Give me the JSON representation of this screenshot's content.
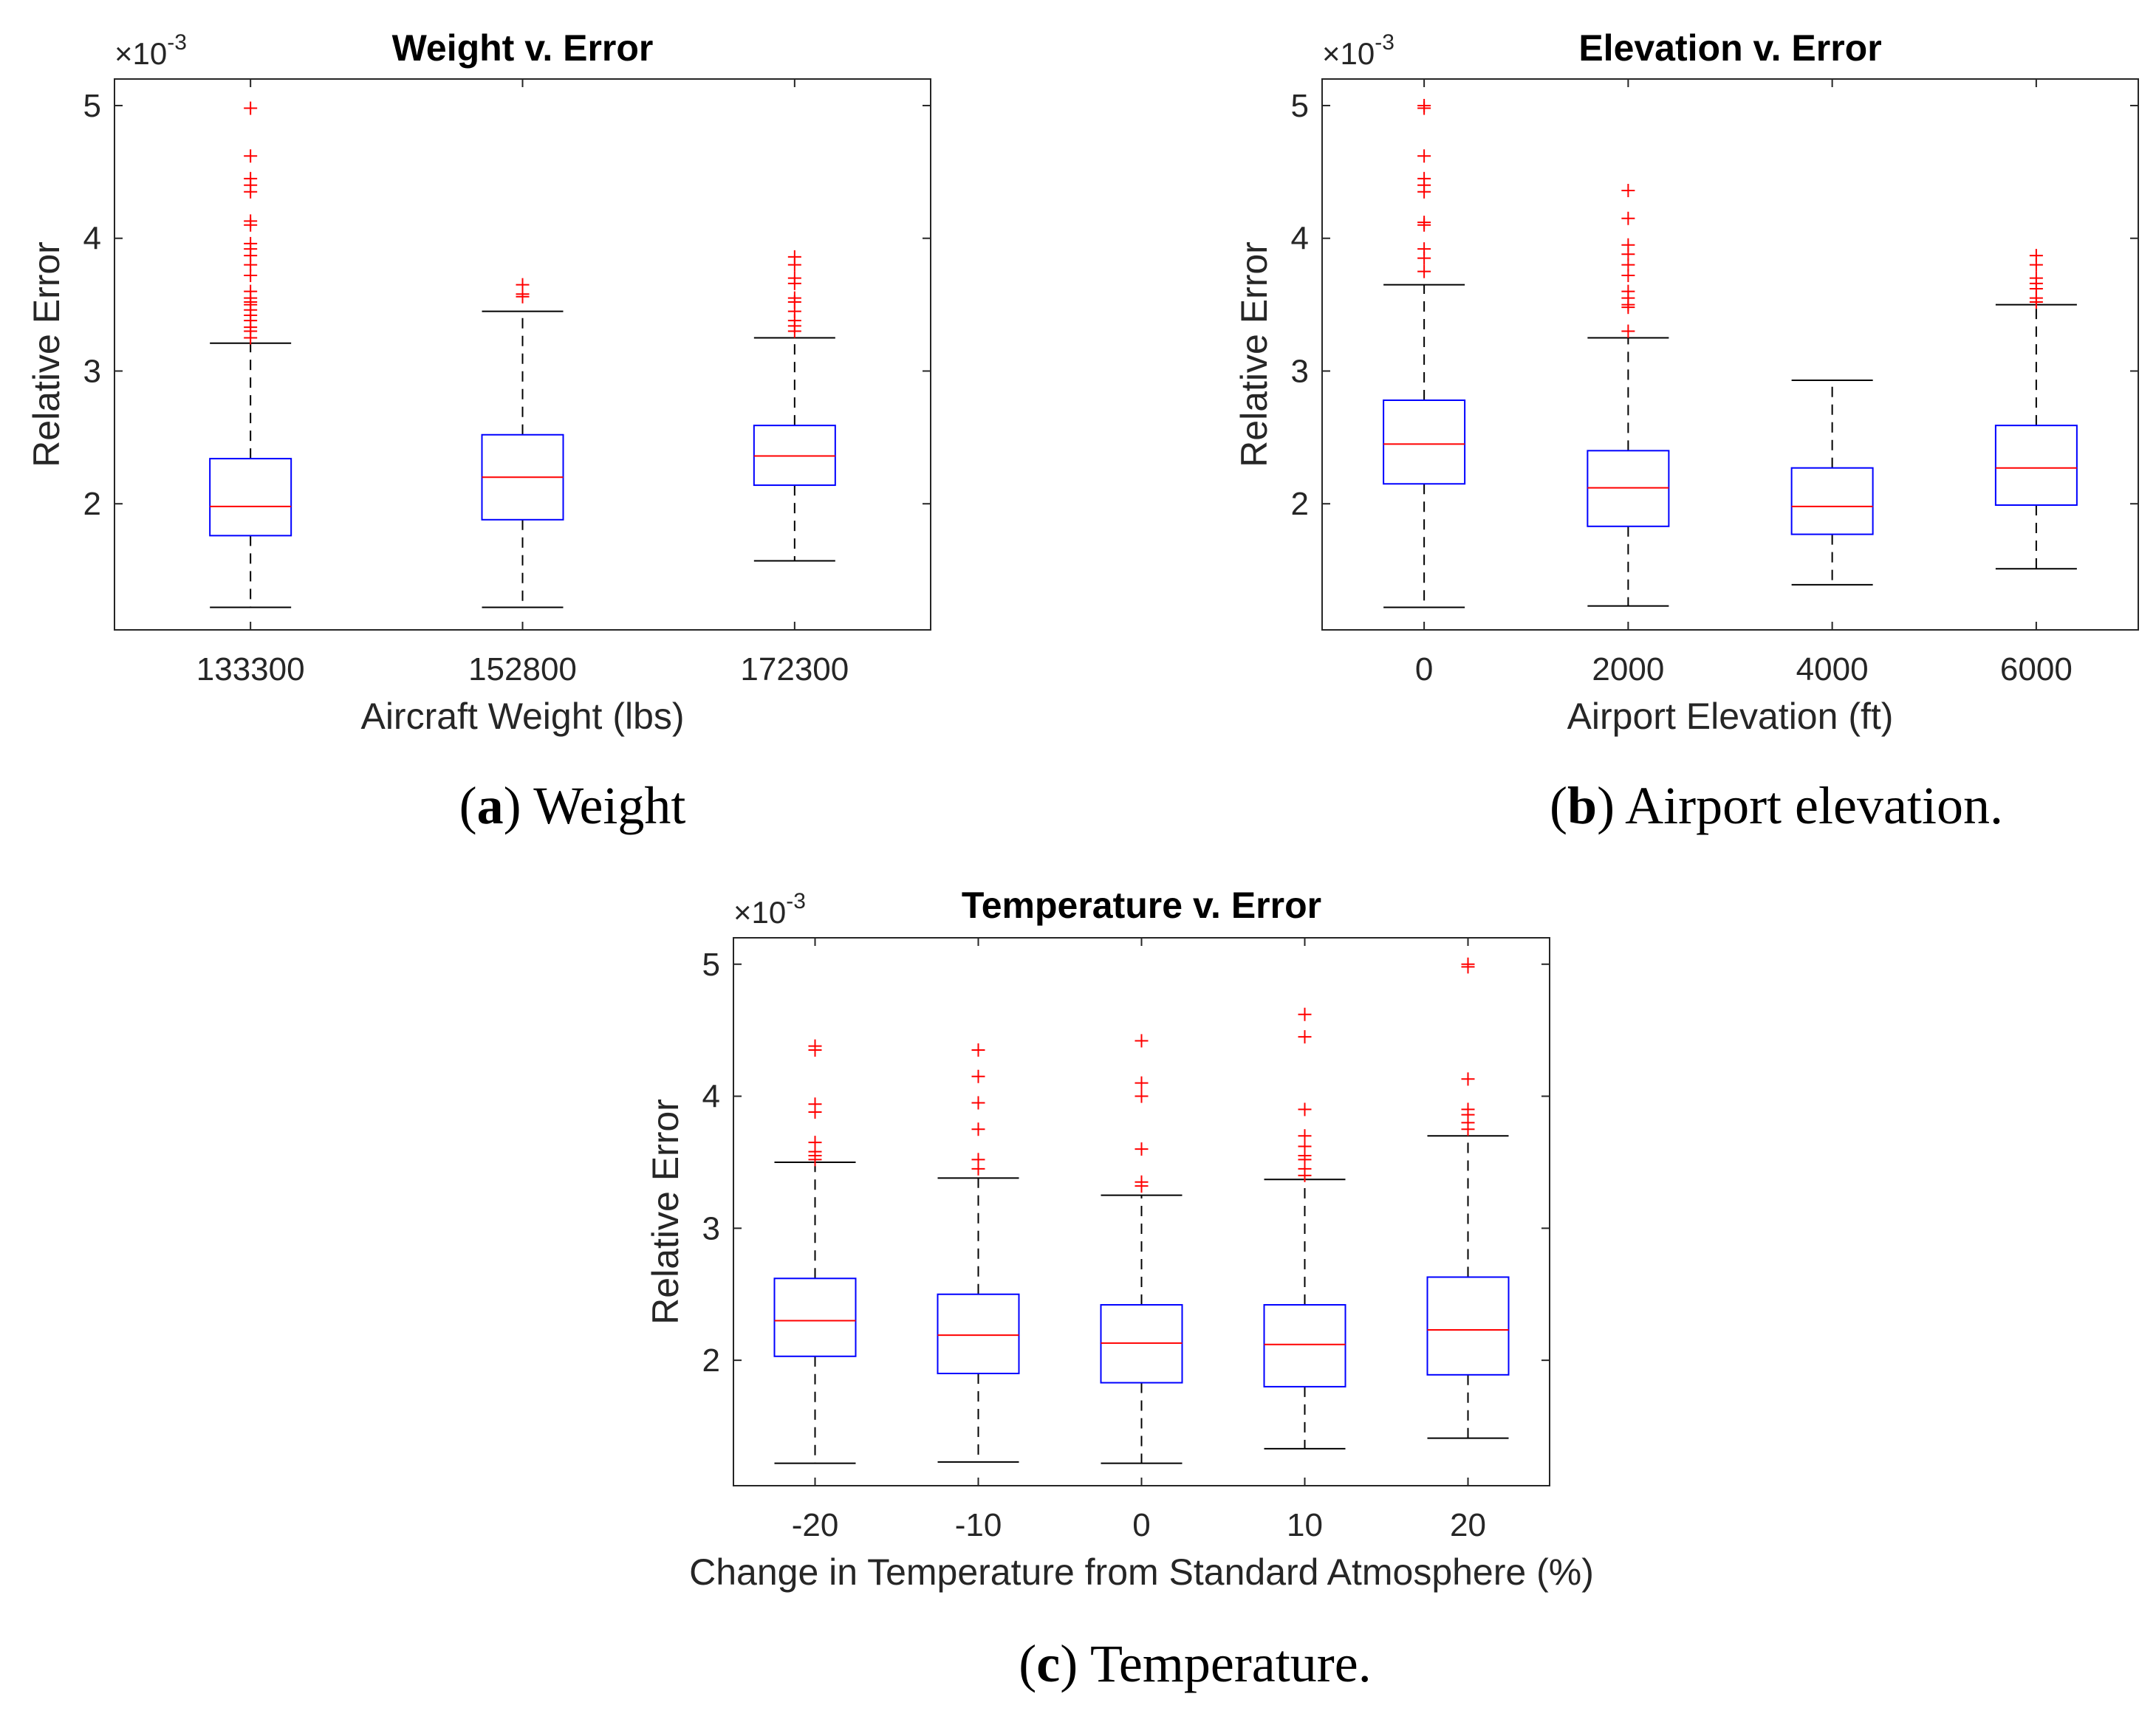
{
  "colors": {
    "box": "#0000ff",
    "median": "#ff0000",
    "outlier": "#ff0000",
    "whisker": "#000000",
    "axis": "#262626"
  },
  "captions": [
    {
      "label": "a",
      "text": "Weight"
    },
    {
      "label": "b",
      "text": "Airport elevation."
    },
    {
      "label": "c",
      "text": "Temperature."
    }
  ],
  "chart_data": [
    {
      "type": "box",
      "title": "Weight v. Error",
      "xlabel": "Aircraft Weight (lbs)",
      "ylabel": "Relative Error",
      "exponent_label": "×10",
      "exponent": "-3",
      "ylim": [
        1.05,
        5.2
      ],
      "yticks": [
        "2",
        "3",
        "4",
        "5"
      ],
      "categories": [
        "133300",
        "152800",
        "172300"
      ],
      "boxes": [
        {
          "whisker_low": 1.22,
          "q1": 1.76,
          "median": 1.98,
          "q3": 2.34,
          "whisker_high": 3.21,
          "outliers": [
            3.25,
            3.3,
            3.33,
            3.38,
            3.42,
            3.46,
            3.5,
            3.52,
            3.55,
            3.6,
            3.72,
            3.8,
            3.87,
            3.92,
            3.96,
            4.1,
            4.13,
            4.35,
            4.4,
            4.45,
            4.62,
            4.98
          ]
        },
        {
          "whisker_low": 1.22,
          "q1": 1.88,
          "median": 2.2,
          "q3": 2.52,
          "whisker_high": 3.45,
          "outliers": [
            3.56,
            3.58,
            3.65
          ]
        },
        {
          "whisker_low": 1.57,
          "q1": 2.14,
          "median": 2.36,
          "q3": 2.59,
          "whisker_high": 3.25,
          "outliers": [
            3.3,
            3.34,
            3.38,
            3.45,
            3.52,
            3.55,
            3.66,
            3.7,
            3.8,
            3.86
          ]
        }
      ]
    },
    {
      "type": "box",
      "title": "Elevation v. Error",
      "xlabel": "Airport Elevation (ft)",
      "ylabel": "Relative Error",
      "exponent_label": "×10",
      "exponent": "-3",
      "ylim": [
        1.05,
        5.2
      ],
      "yticks": [
        "2",
        "3",
        "4",
        "5"
      ],
      "categories": [
        "0",
        "2000",
        "4000",
        "6000"
      ],
      "boxes": [
        {
          "whisker_low": 1.22,
          "q1": 2.15,
          "median": 2.45,
          "q3": 2.78,
          "whisker_high": 3.65,
          "outliers": [
            3.75,
            3.85,
            3.92,
            4.1,
            4.12,
            4.35,
            4.4,
            4.45,
            4.62,
            4.98,
            5.0
          ]
        },
        {
          "whisker_low": 1.23,
          "q1": 1.83,
          "median": 2.12,
          "q3": 2.4,
          "whisker_high": 3.25,
          "outliers": [
            3.3,
            3.48,
            3.5,
            3.55,
            3.6,
            3.72,
            3.8,
            3.88,
            3.95,
            4.15,
            4.36
          ]
        },
        {
          "whisker_low": 1.39,
          "q1": 1.77,
          "median": 1.98,
          "q3": 2.27,
          "whisker_high": 2.93,
          "outliers": []
        },
        {
          "whisker_low": 1.51,
          "q1": 1.99,
          "median": 2.27,
          "q3": 2.59,
          "whisker_high": 3.5,
          "outliers": [
            3.52,
            3.55,
            3.62,
            3.66,
            3.7,
            3.8,
            3.87
          ]
        }
      ]
    },
    {
      "type": "box",
      "title": "Temperature v. Error",
      "xlabel": "Change in Temperature from Standard Atmosphere (%)",
      "ylabel": "Relative Error",
      "exponent_label": "×10",
      "exponent": "-3",
      "ylim": [
        1.05,
        5.2
      ],
      "yticks": [
        "2",
        "3",
        "4",
        "5"
      ],
      "categories": [
        "-20",
        "-10",
        "0",
        "10",
        "20"
      ],
      "boxes": [
        {
          "whisker_low": 1.22,
          "q1": 2.03,
          "median": 2.3,
          "q3": 2.62,
          "whisker_high": 3.5,
          "outliers": [
            3.52,
            3.55,
            3.58,
            3.65,
            3.88,
            3.94,
            4.35,
            4.38
          ]
        },
        {
          "whisker_low": 1.23,
          "q1": 1.9,
          "median": 2.19,
          "q3": 2.5,
          "whisker_high": 3.38,
          "outliers": [
            3.45,
            3.52,
            3.75,
            3.95,
            4.15,
            4.35
          ]
        },
        {
          "whisker_low": 1.22,
          "q1": 1.83,
          "median": 2.13,
          "q3": 2.42,
          "whisker_high": 3.25,
          "outliers": [
            3.32,
            3.35,
            3.6,
            4.0,
            4.1,
            4.42
          ]
        },
        {
          "whisker_low": 1.33,
          "q1": 1.8,
          "median": 2.12,
          "q3": 2.42,
          "whisker_high": 3.37,
          "outliers": [
            3.4,
            3.45,
            3.52,
            3.55,
            3.62,
            3.7,
            3.9,
            4.45,
            4.62
          ]
        },
        {
          "whisker_low": 1.41,
          "q1": 1.89,
          "median": 2.23,
          "q3": 2.63,
          "whisker_high": 3.7,
          "outliers": [
            3.75,
            3.8,
            3.86,
            3.9,
            4.13,
            4.98,
            5.0
          ]
        }
      ]
    }
  ]
}
